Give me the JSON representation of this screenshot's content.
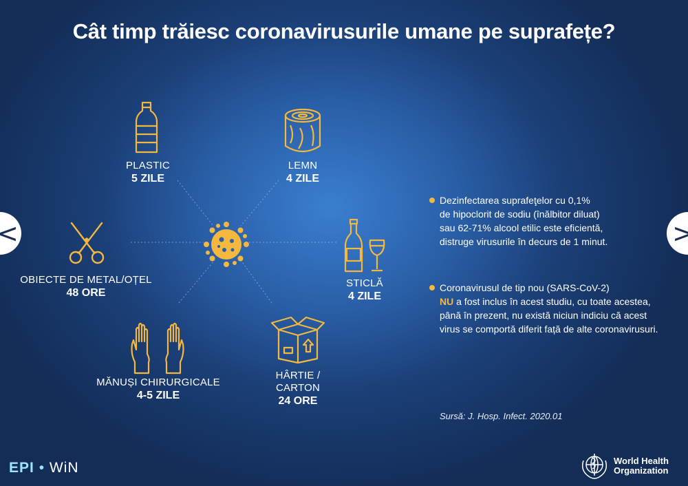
{
  "title": "Cât timp trăiesc coronavirusurile umane pe suprafețe?",
  "surfaces": {
    "plastic": {
      "name": "PLASTIC",
      "value": "5 ZILE",
      "icon": "bottle-icon"
    },
    "lemn": {
      "name": "LEMN",
      "value": "4 ZILE",
      "icon": "wood-log-icon"
    },
    "metal": {
      "name": "OBIECTE DE METAL/OȚEL",
      "value": "48 ORE",
      "icon": "scissors-icon"
    },
    "sticla": {
      "name": "STICLĂ",
      "value": "4 ZILE",
      "icon": "glass-bottle-icon"
    },
    "manusi": {
      "name": "MĂNUȘI CHIRURGICALE",
      "value": "4-5 ZILE",
      "icon": "gloves-icon"
    },
    "hartie": {
      "name_line1": "HÂRTIE /",
      "name_line2": "CARTON",
      "value": "24 ORE",
      "icon": "cardboard-box-icon"
    }
  },
  "bullets": [
    {
      "lines": [
        "Dezinfectarea suprafeţelor cu 0,1%",
        "de hipoclorit de sodiu (înălbitor diluat)",
        "sau 62-71% alcool etilic este eficientă,",
        "distruge virusurile în decurs de 1 minut."
      ]
    },
    {
      "line1": "Coronavirusul de tip nou (SARS-CoV-2)",
      "highlight": "NU",
      "line2_rest": " a fost inclus în acest studiu, cu toate acestea,",
      "lines_rest": [
        "până în prezent, nu există niciun indiciu că acest",
        "virus se comportă diferit față de alte coronavirusuri."
      ]
    }
  ],
  "source": "Sursă: J. Hosp. Infect. 2020.01",
  "nav": {
    "prev": "<",
    "next": ">"
  },
  "footer": {
    "epi_left": "EPI",
    "epi_dot": "•",
    "epi_right": "WiN",
    "who_line1": "World Health",
    "who_line2": "Organization"
  },
  "colors": {
    "accent": "#f5b83f",
    "background": "#1b3f77",
    "text": "#ffffff"
  }
}
